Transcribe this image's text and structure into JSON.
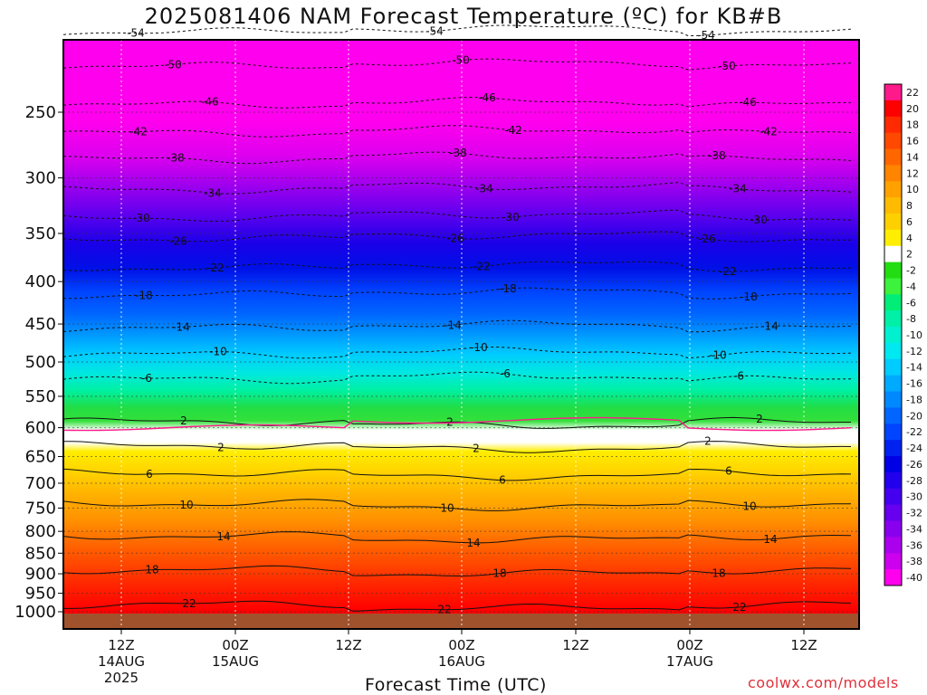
{
  "chart_data": {
    "type": "heatmap",
    "title": "2025081406 NAM Forecast Temperature (ºC) for KB#B",
    "xlabel": "Forecast Time (UTC)",
    "ylabel": "",
    "y_scale": "log",
    "y_reversed": true,
    "y_ticks": [
      "250",
      "300",
      "350",
      "400",
      "450",
      "500",
      "550",
      "600",
      "650",
      "700",
      "750",
      "800",
      "850",
      "900",
      "950",
      "1000"
    ],
    "x_ticks": [
      {
        "label": "12Z",
        "date": "14AUG",
        "year": "2025"
      },
      {
        "label": "00Z",
        "date": "15AUG",
        "year": ""
      },
      {
        "label": "12Z",
        "date": "",
        "year": ""
      },
      {
        "label": "00Z",
        "date": "16AUG",
        "year": ""
      },
      {
        "label": "12Z",
        "date": "",
        "year": ""
      },
      {
        "label": "00Z",
        "date": "17AUG",
        "year": ""
      },
      {
        "label": "12Z",
        "date": "",
        "year": ""
      }
    ],
    "colorbar_labels": [
      "22",
      "20",
      "18",
      "16",
      "14",
      "12",
      "10",
      "8",
      "6",
      "4",
      "2",
      "-2",
      "-4",
      "-6",
      "-8",
      "-10",
      "-12",
      "-14",
      "-16",
      "-18",
      "-20",
      "-22",
      "-24",
      "-26",
      "-28",
      "-30",
      "-32",
      "-34",
      "-36",
      "-38",
      "-40"
    ],
    "colorbar_colors": [
      "#ff1a8c",
      "#ff0000",
      "#ff2a00",
      "#ff4800",
      "#ff6600",
      "#ff8400",
      "#ffa200",
      "#ffbb00",
      "#ffd000",
      "#ffee00",
      "#ffffff",
      "#22dd11",
      "#3cf23c",
      "#00ee77",
      "#00f0a8",
      "#00f0d0",
      "#00e8f0",
      "#00ccff",
      "#00aaff",
      "#0088ff",
      "#0066ff",
      "#0044ff",
      "#0022ee",
      "#0000e6",
      "#2200ee",
      "#4400ee",
      "#6600ee",
      "#8800ee",
      "#aa00ee",
      "#cc00ee",
      "#ff00ee"
    ],
    "isotherms": [
      {
        "label": "-54",
        "pressure": 200
      },
      {
        "label": "-50",
        "pressure": 220
      },
      {
        "label": "-46",
        "pressure": 245
      },
      {
        "label": "-42",
        "pressure": 265
      },
      {
        "label": "-38",
        "pressure": 285
      },
      {
        "label": "-34",
        "pressure": 310
      },
      {
        "label": "-30",
        "pressure": 335
      },
      {
        "label": "-26",
        "pressure": 355
      },
      {
        "label": "-22",
        "pressure": 385
      },
      {
        "label": "-18",
        "pressure": 415
      },
      {
        "label": "-14",
        "pressure": 455
      },
      {
        "label": "-10",
        "pressure": 490
      },
      {
        "label": "-6",
        "pressure": 525
      },
      {
        "label": "2",
        "pressure": 590
      },
      {
        "label": "2",
        "pressure": 630
      },
      {
        "label": "6",
        "pressure": 680
      },
      {
        "label": "10",
        "pressure": 740
      },
      {
        "label": "14",
        "pressure": 810
      },
      {
        "label": "18",
        "pressure": 890
      },
      {
        "label": "22",
        "pressure": 980
      }
    ],
    "credit": "coolwx.com/models"
  }
}
